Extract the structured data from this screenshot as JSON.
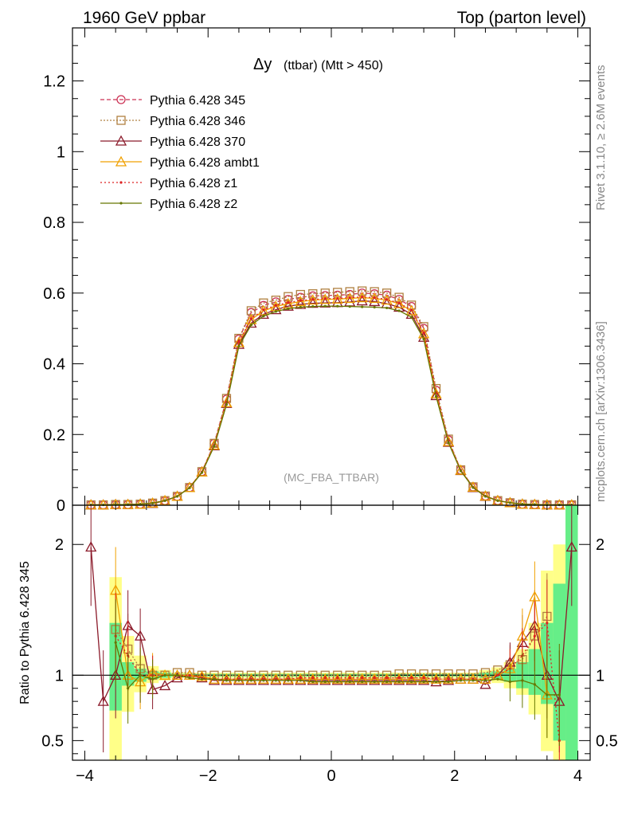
{
  "header": {
    "left": "1960 GeV ppbar",
    "right": "Top (parton level)"
  },
  "side": {
    "rivet": "Rivet 3.1.10, ≥ 2.6M events",
    "mcplots": "mcplots.cern.ch [arXiv:1306.3436]"
  },
  "chart_data": {
    "type": "line",
    "title": "Δy (ttbar) (Mtt > 450)",
    "title_main": "Δy",
    "title_sub": "(ttbar) (Mtt > 450)",
    "watermark": "(MC_FBA_TTBAR)",
    "ratio_ylabel": "Ratio to Pythia 6.428 345",
    "xlim": [
      -4.2,
      4.2
    ],
    "ylim": [
      0,
      1.35
    ],
    "ratio_ylim": [
      0.35,
      2.3
    ],
    "x_ticks": [
      "−4",
      "−2",
      "0",
      "2",
      "4"
    ],
    "y_ticks": [
      "0",
      "0.2",
      "0.4",
      "0.6",
      "0.8",
      "1",
      "1.2"
    ],
    "ratio_ticks": [
      "0.5",
      "1",
      "2"
    ],
    "legend_position": "top-left",
    "x": [
      -3.9,
      -3.7,
      -3.5,
      -3.3,
      -3.1,
      -2.9,
      -2.7,
      -2.5,
      -2.3,
      -2.1,
      -1.9,
      -1.7,
      -1.5,
      -1.3,
      -1.1,
      -0.9,
      -0.7,
      -0.5,
      -0.3,
      -0.1,
      0.1,
      0.3,
      0.5,
      0.7,
      0.9,
      1.1,
      1.3,
      1.5,
      1.7,
      1.9,
      2.1,
      2.3,
      2.5,
      2.7,
      2.9,
      3.1,
      3.3,
      3.5,
      3.7,
      3.9
    ],
    "series": [
      {
        "name": "Pythia 6.428 345",
        "color": "#cc3355",
        "marker": "circle",
        "dash": "5,3",
        "values": [
          0.001,
          0.001,
          0.002,
          0.002,
          0.003,
          0.006,
          0.013,
          0.025,
          0.05,
          0.095,
          0.175,
          0.3,
          0.47,
          0.545,
          0.565,
          0.575,
          0.582,
          0.588,
          0.592,
          0.593,
          0.594,
          0.596,
          0.6,
          0.598,
          0.594,
          0.582,
          0.562,
          0.5,
          0.325,
          0.185,
          0.1,
          0.052,
          0.026,
          0.013,
          0.007,
          0.003,
          0.002,
          0.001,
          0.001,
          0.001
        ]
      },
      {
        "name": "Pythia 6.428 346",
        "color": "#b08040",
        "marker": "square",
        "dash": "2,2",
        "values": [
          0.001,
          0.001,
          0.002,
          0.002,
          0.003,
          0.006,
          0.013,
          0.025,
          0.05,
          0.095,
          0.175,
          0.302,
          0.472,
          0.55,
          0.572,
          0.58,
          0.59,
          0.596,
          0.598,
          0.6,
          0.602,
          0.604,
          0.606,
          0.604,
          0.6,
          0.588,
          0.566,
          0.505,
          0.33,
          0.187,
          0.1,
          0.052,
          0.026,
          0.013,
          0.007,
          0.003,
          0.002,
          0.001,
          0.001,
          0.001
        ]
      },
      {
        "name": "Pythia 6.428 370",
        "color": "#8b1a2a",
        "marker": "triangle",
        "dash": "",
        "values": [
          0.001,
          0.001,
          0.002,
          0.002,
          0.003,
          0.005,
          0.012,
          0.025,
          0.05,
          0.094,
          0.168,
          0.288,
          0.455,
          0.515,
          0.54,
          0.553,
          0.563,
          0.568,
          0.571,
          0.572,
          0.573,
          0.575,
          0.578,
          0.576,
          0.57,
          0.56,
          0.54,
          0.475,
          0.31,
          0.178,
          0.098,
          0.05,
          0.025,
          0.013,
          0.007,
          0.003,
          0.002,
          0.001,
          0.001,
          0.001
        ]
      },
      {
        "name": "Pythia 6.428 ambt1",
        "color": "#f0a000",
        "marker": "triangle",
        "dash": "",
        "values": [
          0.001,
          0.001,
          0.002,
          0.002,
          0.003,
          0.006,
          0.013,
          0.025,
          0.05,
          0.094,
          0.17,
          0.29,
          0.46,
          0.525,
          0.55,
          0.562,
          0.57,
          0.576,
          0.58,
          0.582,
          0.583,
          0.585,
          0.587,
          0.585,
          0.58,
          0.57,
          0.55,
          0.485,
          0.315,
          0.18,
          0.099,
          0.051,
          0.026,
          0.013,
          0.007,
          0.003,
          0.002,
          0.001,
          0.001,
          0.001
        ]
      },
      {
        "name": "Pythia 6.428 z1",
        "color": "#dd2222",
        "marker": "dot",
        "dash": "2,3",
        "values": [
          0.001,
          0.001,
          0.002,
          0.002,
          0.003,
          0.006,
          0.013,
          0.025,
          0.05,
          0.094,
          0.17,
          0.292,
          0.462,
          0.528,
          0.553,
          0.565,
          0.573,
          0.579,
          0.582,
          0.584,
          0.585,
          0.587,
          0.589,
          0.587,
          0.582,
          0.572,
          0.552,
          0.488,
          0.317,
          0.181,
          0.099,
          0.051,
          0.026,
          0.013,
          0.007,
          0.003,
          0.002,
          0.001,
          0.001,
          0.001
        ]
      },
      {
        "name": "Pythia 6.428 z2",
        "color": "#667700",
        "marker": "dot",
        "dash": "",
        "values": [
          0.001,
          0.001,
          0.002,
          0.002,
          0.003,
          0.006,
          0.013,
          0.025,
          0.049,
          0.092,
          0.167,
          0.285,
          0.45,
          0.51,
          0.535,
          0.548,
          0.556,
          0.56,
          0.562,
          0.563,
          0.563,
          0.562,
          0.561,
          0.56,
          0.558,
          0.55,
          0.532,
          0.47,
          0.308,
          0.177,
          0.097,
          0.05,
          0.025,
          0.013,
          0.007,
          0.003,
          0.002,
          0.001,
          0.001,
          0.001
        ]
      }
    ],
    "ratio_series": [
      {
        "name": "Pythia 6.428 346",
        "values": [
          null,
          null,
          1.35,
          1.2,
          1.05,
          1.0,
          1.0,
          1.02,
          1.02,
          1.0,
          1.0,
          1.0,
          1.0,
          1.0,
          1.0,
          1.0,
          1.0,
          1.0,
          1.0,
          1.0,
          1.0,
          1.0,
          1.0,
          1.0,
          1.0,
          1.01,
          1.01,
          1.01,
          1.01,
          1.01,
          1.01,
          1.01,
          1.02,
          1.04,
          1.08,
          1.12,
          1.3,
          1.45,
          null,
          null
        ]
      },
      {
        "name": "Pythia 6.428 370",
        "values": [
          1.98,
          0.8,
          1.0,
          1.38,
          1.3,
          0.89,
          0.92,
          0.98,
          1.0,
          0.98,
          0.96,
          0.96,
          0.96,
          0.96,
          0.96,
          0.96,
          0.96,
          0.96,
          0.96,
          0.96,
          0.96,
          0.96,
          0.96,
          0.96,
          0.96,
          0.96,
          0.96,
          0.96,
          0.95,
          0.96,
          0.97,
          0.97,
          0.93,
          1.0,
          1.1,
          1.25,
          1.38,
          1.0,
          0.8,
          1.98
        ]
      },
      {
        "name": "Pythia 6.428 ambt1",
        "values": [
          null,
          null,
          1.65,
          1.0,
          0.95,
          1.02,
          1.0,
          1.0,
          1.0,
          0.99,
          0.97,
          0.97,
          0.97,
          0.97,
          0.97,
          0.97,
          0.97,
          0.97,
          0.97,
          0.97,
          0.97,
          0.97,
          0.97,
          0.97,
          0.97,
          0.97,
          0.97,
          0.97,
          0.97,
          0.97,
          0.97,
          0.97,
          0.97,
          1.0,
          1.05,
          1.3,
          1.6,
          0.85,
          null,
          null
        ]
      },
      {
        "name": "Pythia 6.428 z1",
        "values": [
          null,
          null,
          1.3,
          1.15,
          1.0,
          1.0,
          1.0,
          1.0,
          1.0,
          0.98,
          0.97,
          0.97,
          0.97,
          0.97,
          0.97,
          0.97,
          0.97,
          0.98,
          0.98,
          0.98,
          0.98,
          0.98,
          0.98,
          0.98,
          0.98,
          0.98,
          0.98,
          0.98,
          0.97,
          0.97,
          0.97,
          0.97,
          0.97,
          1.0,
          1.05,
          1.15,
          1.3,
          1.4,
          0.5,
          null
        ]
      },
      {
        "name": "Pythia 6.428 z2",
        "values": [
          null,
          null,
          1.25,
          0.9,
          1.0,
          0.97,
          1.0,
          1.0,
          0.98,
          0.97,
          0.97,
          0.96,
          0.96,
          0.96,
          0.96,
          0.96,
          0.96,
          0.96,
          0.95,
          0.95,
          0.95,
          0.95,
          0.95,
          0.95,
          0.95,
          0.95,
          0.95,
          0.95,
          0.95,
          0.95,
          0.96,
          0.96,
          0.96,
          0.97,
          0.95,
          0.96,
          0.93,
          0.85,
          0.85,
          null
        ]
      }
    ],
    "band_green": [
      null,
      null,
      [
        0.73,
        1.4
      ],
      [
        0.92,
        1.1
      ],
      [
        0.95,
        1.05
      ],
      [
        0.97,
        1.03
      ],
      [
        0.98,
        1.02
      ],
      [
        0.99,
        1.01
      ],
      [
        0.99,
        1.01
      ],
      [
        0.99,
        1.01
      ],
      [
        0.99,
        1.01
      ],
      [
        0.99,
        1.01
      ],
      [
        0.99,
        1.01
      ],
      [
        0.99,
        1.01
      ],
      [
        0.99,
        1.01
      ],
      [
        0.99,
        1.01
      ],
      [
        0.99,
        1.01
      ],
      [
        0.99,
        1.01
      ],
      [
        0.99,
        1.01
      ],
      [
        0.99,
        1.01
      ],
      [
        0.99,
        1.01
      ],
      [
        0.99,
        1.01
      ],
      [
        0.99,
        1.01
      ],
      [
        0.99,
        1.01
      ],
      [
        0.99,
        1.01
      ],
      [
        0.99,
        1.01
      ],
      [
        0.99,
        1.01
      ],
      [
        0.99,
        1.01
      ],
      [
        0.99,
        1.01
      ],
      [
        0.99,
        1.01
      ],
      [
        0.99,
        1.01
      ],
      [
        0.99,
        1.01
      ],
      [
        0.98,
        1.02
      ],
      [
        0.97,
        1.03
      ],
      [
        0.95,
        1.05
      ],
      [
        0.9,
        1.1
      ],
      [
        0.85,
        1.2
      ],
      [
        0.78,
        1.4
      ],
      [
        0.5,
        1.7
      ],
      [
        0.35,
        2.3
      ]
    ],
    "band_yellow": [
      null,
      null,
      [
        0.35,
        1.75
      ],
      [
        0.72,
        1.3
      ],
      [
        0.87,
        1.15
      ],
      [
        0.94,
        1.07
      ],
      [
        0.96,
        1.04
      ],
      [
        0.98,
        1.02
      ],
      [
        0.98,
        1.02
      ],
      [
        0.98,
        1.02
      ],
      [
        0.98,
        1.02
      ],
      [
        0.98,
        1.02
      ],
      [
        0.98,
        1.02
      ],
      [
        0.98,
        1.02
      ],
      [
        0.98,
        1.02
      ],
      [
        0.98,
        1.02
      ],
      [
        0.98,
        1.02
      ],
      [
        0.98,
        1.02
      ],
      [
        0.98,
        1.02
      ],
      [
        0.98,
        1.02
      ],
      [
        0.98,
        1.02
      ],
      [
        0.98,
        1.02
      ],
      [
        0.98,
        1.02
      ],
      [
        0.98,
        1.02
      ],
      [
        0.98,
        1.02
      ],
      [
        0.98,
        1.02
      ],
      [
        0.98,
        1.02
      ],
      [
        0.98,
        1.02
      ],
      [
        0.98,
        1.02
      ],
      [
        0.98,
        1.02
      ],
      [
        0.98,
        1.02
      ],
      [
        0.98,
        1.02
      ],
      [
        0.96,
        1.04
      ],
      [
        0.94,
        1.06
      ],
      [
        0.9,
        1.1
      ],
      [
        0.85,
        1.2
      ],
      [
        0.7,
        1.4
      ],
      [
        0.42,
        1.8
      ],
      [
        0.35,
        2.0
      ],
      [
        0.35,
        2.3
      ]
    ]
  }
}
